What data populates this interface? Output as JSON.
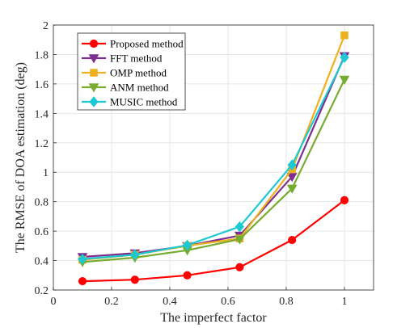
{
  "chart_data": {
    "type": "line",
    "title": "",
    "xlabel": "The imperfect factor",
    "ylabel": "The RMSE of DOA estimation (deg)",
    "xlim": [
      0,
      1.1
    ],
    "ylim": [
      0.2,
      2
    ],
    "xticks": [
      0,
      0.2,
      0.4,
      0.6,
      0.8,
      1
    ],
    "xtick_labels": [
      "0",
      "0.2",
      "0.4",
      "0.6",
      "0.8",
      "1"
    ],
    "yticks": [
      0.2,
      0.4,
      0.6,
      0.8,
      1,
      1.2,
      1.4,
      1.6,
      1.8,
      2
    ],
    "ytick_labels": [
      "0.2",
      "0.4",
      "0.6",
      "0.8",
      "1",
      "1.2",
      "1.4",
      "1.6",
      "1.8",
      "2"
    ],
    "grid": true,
    "legend_position": "top-left",
    "x": [
      0.1,
      0.28,
      0.46,
      0.64,
      0.82,
      1.0
    ],
    "series": [
      {
        "name": "Proposed method",
        "color": "#ff0000",
        "marker": "circle",
        "values": [
          0.26,
          0.27,
          0.3,
          0.355,
          0.54,
          0.81
        ]
      },
      {
        "name": "FFT method",
        "color": "#7e2f8e",
        "marker": "triangle-down",
        "values": [
          0.425,
          0.45,
          0.5,
          0.57,
          0.97,
          1.79
        ]
      },
      {
        "name": "OMP method",
        "color": "#edb120",
        "marker": "square",
        "values": [
          0.405,
          0.44,
          0.5,
          0.55,
          1.02,
          1.93
        ]
      },
      {
        "name": "ANM method",
        "color": "#77ac30",
        "marker": "triangle-down",
        "values": [
          0.39,
          0.42,
          0.47,
          0.545,
          0.89,
          1.63
        ]
      },
      {
        "name": "MUSIC method",
        "color": "#1ec8d2",
        "marker": "diamond",
        "values": [
          0.41,
          0.44,
          0.505,
          0.63,
          1.05,
          1.78
        ]
      }
    ]
  }
}
